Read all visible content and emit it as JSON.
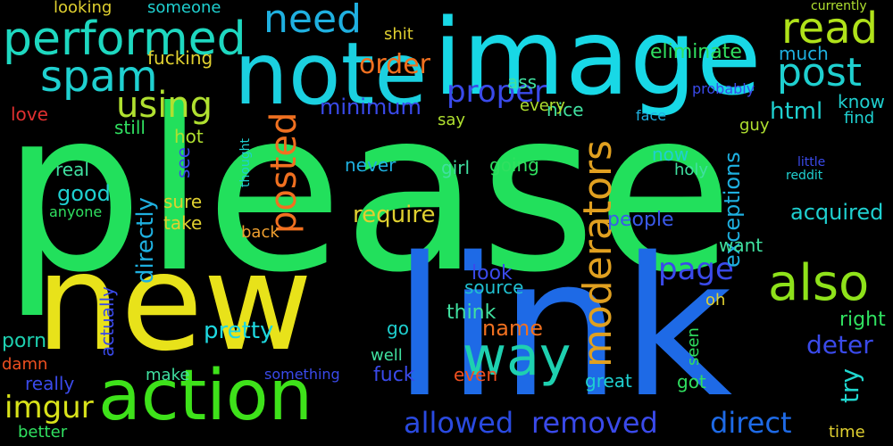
{
  "background": "#000000",
  "words": [
    {
      "text": "please",
      "color": "#22e05c"
    },
    {
      "text": "new",
      "color": "#e8e21a"
    },
    {
      "text": "link",
      "color": "#1e6ae6"
    },
    {
      "text": "image",
      "color": "#18d8e6"
    },
    {
      "text": "note",
      "color": "#1bd0e0"
    },
    {
      "text": "action",
      "color": "#3ee21a"
    },
    {
      "text": "performed",
      "color": "#1ed8c0"
    },
    {
      "text": "need",
      "color": "#1fb0e0"
    },
    {
      "text": "spam",
      "color": "#1fd0d0"
    },
    {
      "text": "read",
      "color": "#b0e21a"
    },
    {
      "text": "post",
      "color": "#1fd0d0"
    },
    {
      "text": "way",
      "color": "#1ed0b0"
    },
    {
      "text": "also",
      "color": "#8ee21a"
    },
    {
      "text": "moderators",
      "color": "#e0a020"
    },
    {
      "text": "posted",
      "color": "#f07020"
    },
    {
      "text": "using",
      "color": "#b0e030"
    },
    {
      "text": "proper",
      "color": "#3a4aea"
    },
    {
      "text": "allowed",
      "color": "#2a4ae0"
    },
    {
      "text": "removed",
      "color": "#3a4aea"
    },
    {
      "text": "direct",
      "color": "#1e6ae6"
    },
    {
      "text": "imgur",
      "color": "#d8e21a"
    },
    {
      "text": "page",
      "color": "#3a4aea"
    },
    {
      "text": "directly",
      "color": "#1eb0e0"
    },
    {
      "text": "order",
      "color": "#f07020"
    },
    {
      "text": "eliminate",
      "color": "#30e060"
    },
    {
      "text": "require",
      "color": "#e0d030"
    },
    {
      "text": "html",
      "color": "#1fd0d0"
    },
    {
      "text": "minimum",
      "color": "#3a4aea"
    },
    {
      "text": "pretty",
      "color": "#1ed8e0"
    },
    {
      "text": "try",
      "color": "#20d8d0"
    },
    {
      "text": "deter",
      "color": "#3a4aea"
    },
    {
      "text": "exceptions",
      "color": "#1eb0e0"
    },
    {
      "text": "acquired",
      "color": "#1fd0d0"
    },
    {
      "text": "people",
      "color": "#3a5aea"
    },
    {
      "text": "right",
      "color": "#30e060"
    },
    {
      "text": "fuck",
      "color": "#3a4aea"
    },
    {
      "text": "good",
      "color": "#1fd0d0"
    },
    {
      "text": "porn",
      "color": "#1ed0b0"
    },
    {
      "text": "name",
      "color": "#f07020"
    },
    {
      "text": "think",
      "color": "#40e0a0"
    },
    {
      "text": "source",
      "color": "#20c0d0"
    },
    {
      "text": "look",
      "color": "#3a4aea"
    },
    {
      "text": "great",
      "color": "#1fd0d0"
    },
    {
      "text": "got",
      "color": "#30e060"
    },
    {
      "text": "even",
      "color": "#f05020"
    },
    {
      "text": "fucking",
      "color": "#e0d030"
    },
    {
      "text": "ass",
      "color": "#40e0a0"
    },
    {
      "text": "nice",
      "color": "#40e0a0"
    },
    {
      "text": "shit",
      "color": "#e0d030"
    },
    {
      "text": "much",
      "color": "#1eb0e0"
    },
    {
      "text": "know",
      "color": "#1fd0d0"
    },
    {
      "text": "find",
      "color": "#1fd0d0"
    },
    {
      "text": "guy",
      "color": "#b0e030"
    },
    {
      "text": "love",
      "color": "#e03030"
    },
    {
      "text": "hot",
      "color": "#b0e030"
    },
    {
      "text": "see",
      "color": "#3a4aea"
    },
    {
      "text": "still",
      "color": "#30e060"
    },
    {
      "text": "real",
      "color": "#40e0a0"
    },
    {
      "text": "girl",
      "color": "#40e0a0"
    },
    {
      "text": "going",
      "color": "#30e060"
    },
    {
      "text": "never",
      "color": "#1eb0e0"
    },
    {
      "text": "now",
      "color": "#1fd0d0"
    },
    {
      "text": "holy",
      "color": "#40e0a0"
    },
    {
      "text": "sure",
      "color": "#e0d030"
    },
    {
      "text": "take",
      "color": "#e0d030"
    },
    {
      "text": "back",
      "color": "#f0a030"
    },
    {
      "text": "anyone",
      "color": "#30e060"
    },
    {
      "text": "really",
      "color": "#3a4aea"
    },
    {
      "text": "damn",
      "color": "#f05020"
    },
    {
      "text": "make",
      "color": "#40e0a0"
    },
    {
      "text": "well",
      "color": "#40e0a0"
    },
    {
      "text": "go",
      "color": "#1fd0d0"
    },
    {
      "text": "actually",
      "color": "#3a4aea"
    },
    {
      "text": "seen",
      "color": "#30e060"
    },
    {
      "text": "want",
      "color": "#40e0a0"
    },
    {
      "text": "oh",
      "color": "#e0d030"
    },
    {
      "text": "time",
      "color": "#e0d030"
    },
    {
      "text": "better",
      "color": "#30e060"
    },
    {
      "text": "someone",
      "color": "#1fd0d0"
    },
    {
      "text": "looking",
      "color": "#e0d030"
    },
    {
      "text": "every",
      "color": "#b0e030"
    },
    {
      "text": "say",
      "color": "#b0e030"
    },
    {
      "text": "face",
      "color": "#1eb0e0"
    },
    {
      "text": "probably",
      "color": "#3a4aea"
    },
    {
      "text": "currently",
      "color": "#b0e030"
    },
    {
      "text": "something",
      "color": "#3a4aea"
    },
    {
      "text": "thought",
      "color": "#1fd0d0"
    },
    {
      "text": "little",
      "color": "#3a4aea"
    },
    {
      "text": "reddit",
      "color": "#20d0d0"
    }
  ]
}
